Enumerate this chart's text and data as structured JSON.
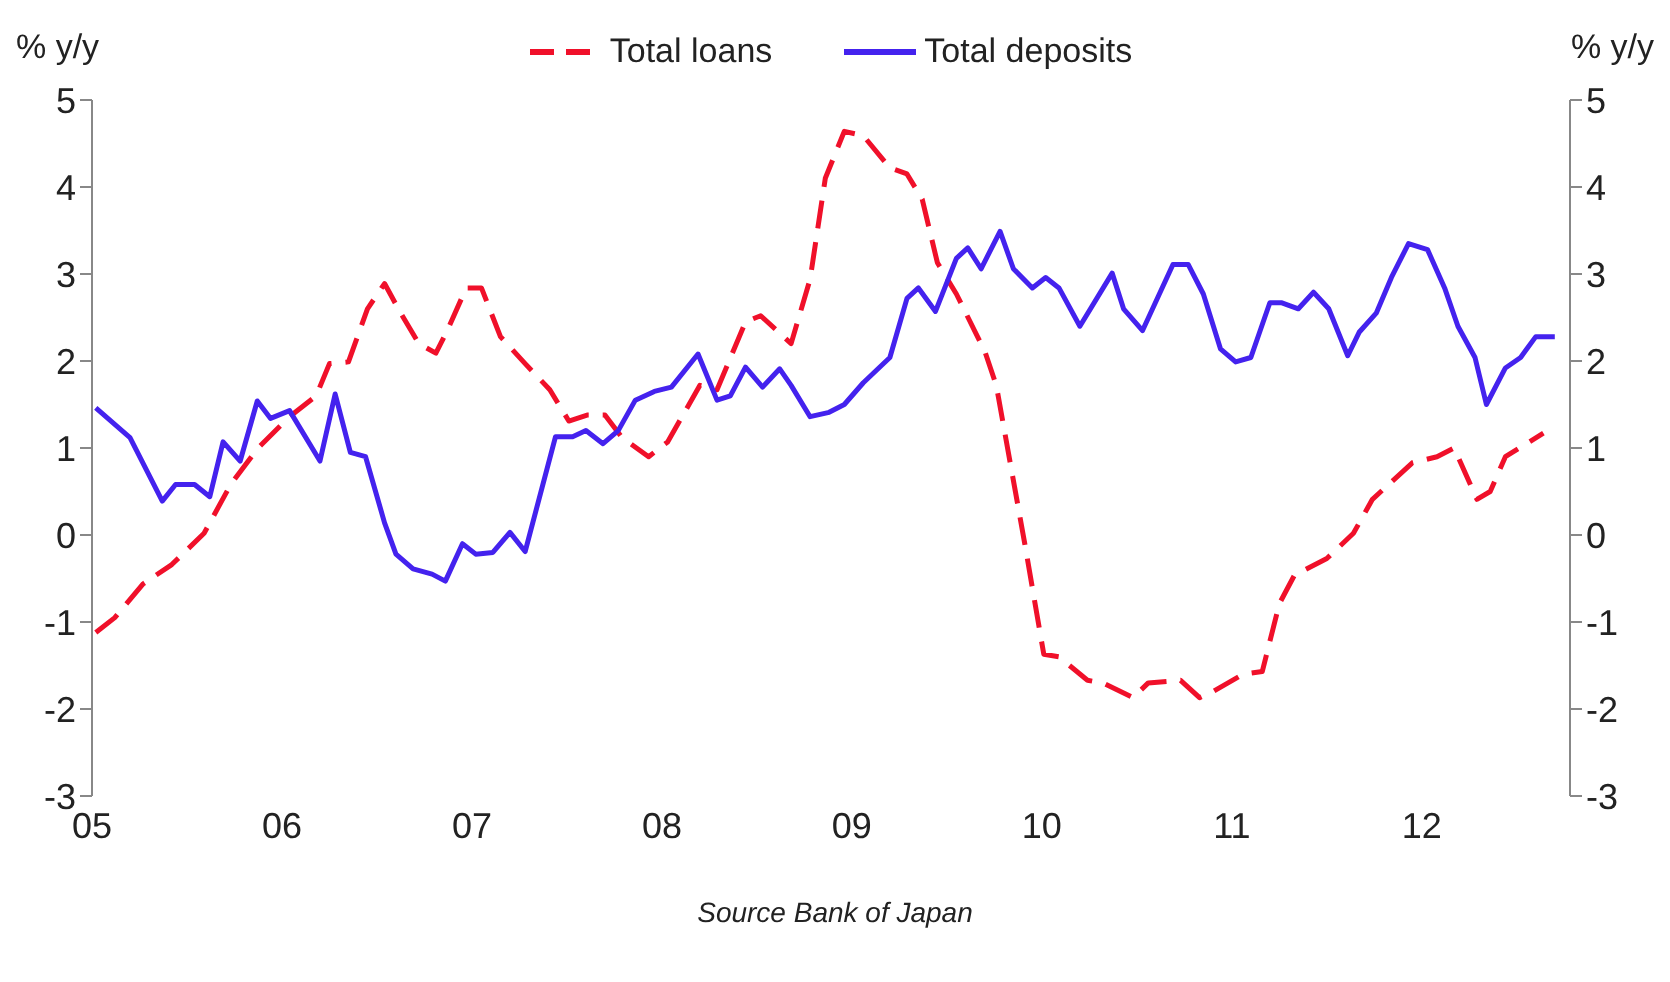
{
  "chart_data": {
    "type": "line",
    "ylabel": "% y/y",
    "y2label": "% y/y",
    "legend": "top",
    "marker": "none",
    "xlim": [
      2005,
      2012.78
    ],
    "xticks": [
      {
        "value": 2005,
        "label": "05"
      },
      {
        "value": 2006,
        "label": "06"
      },
      {
        "value": 2007,
        "label": "07"
      },
      {
        "value": 2008,
        "label": "08"
      },
      {
        "value": 2009,
        "label": "09"
      },
      {
        "value": 2010,
        "label": "10"
      },
      {
        "value": 2011,
        "label": "11"
      },
      {
        "value": 2012,
        "label": "12"
      }
    ],
    "ylim": [
      -3,
      5
    ],
    "yticks": [
      -3,
      -2,
      -1,
      0,
      1,
      2,
      3,
      4,
      5
    ],
    "y2lim": [
      -3,
      5
    ],
    "y2ticks": [
      -3,
      -2,
      -1,
      0,
      1,
      2,
      3,
      4,
      5
    ],
    "series": [
      {
        "name": "Total loans",
        "color": "#f0102a",
        "line_style": "dashed",
        "x": [
          2005.02,
          2005.12,
          2005.27,
          2005.42,
          2005.59,
          2005.73,
          2005.87,
          2006.04,
          2006.18,
          2006.25,
          2006.35,
          2006.45,
          2006.54,
          2006.62,
          2006.72,
          2006.81,
          2006.87,
          2006.97,
          2007.05,
          2007.15,
          2007.28,
          2007.41,
          2007.51,
          2007.61,
          2007.7,
          2007.79,
          2007.93,
          2008.03,
          2008.2,
          2008.29,
          2008.44,
          2008.52,
          2008.68,
          2008.78,
          2008.86,
          2008.96,
          2009.06,
          2009.2,
          2009.29,
          2009.37,
          2009.45,
          2009.55,
          2009.7,
          2009.76,
          2009.91,
          2010.01,
          2010.09,
          2010.24,
          2010.32,
          2010.48,
          2010.56,
          2010.73,
          2010.83,
          2010.9,
          2011.06,
          2011.16,
          2011.25,
          2011.33,
          2011.5,
          2011.64,
          2011.74,
          2011.95,
          2012.08,
          2012.17,
          2012.29,
          2012.36,
          2012.44,
          2012.64
        ],
        "values": [
          -1.12,
          -0.95,
          -0.56,
          -0.34,
          0.02,
          0.58,
          0.99,
          1.36,
          1.6,
          1.97,
          1.99,
          2.6,
          2.89,
          2.57,
          2.2,
          2.09,
          2.35,
          2.84,
          2.84,
          2.28,
          1.97,
          1.67,
          1.31,
          1.38,
          1.38,
          1.12,
          0.9,
          1.07,
          1.72,
          1.67,
          2.45,
          2.52,
          2.2,
          2.94,
          4.1,
          4.64,
          4.59,
          4.22,
          4.15,
          3.86,
          3.13,
          2.77,
          2.11,
          1.72,
          -0.1,
          -1.37,
          -1.4,
          -1.67,
          -1.7,
          -1.87,
          -1.7,
          -1.67,
          -1.87,
          -1.8,
          -1.6,
          -1.57,
          -0.79,
          -0.46,
          -0.27,
          0.02,
          0.41,
          0.83,
          0.9,
          1.0,
          0.41,
          0.5,
          0.9,
          1.17
        ]
      },
      {
        "name": "Total deposits",
        "color": "#4422ee",
        "line_style": "solid",
        "x": [
          2005.02,
          2005.2,
          2005.37,
          2005.44,
          2005.54,
          2005.62,
          2005.69,
          2005.78,
          2005.87,
          2005.94,
          2006.04,
          2006.2,
          2006.28,
          2006.36,
          2006.44,
          2006.54,
          2006.6,
          2006.69,
          2006.79,
          2006.86,
          2006.95,
          2007.02,
          2007.11,
          2007.2,
          2007.28,
          2007.44,
          2007.53,
          2007.6,
          2007.69,
          2007.77,
          2007.86,
          2007.96,
          2008.05,
          2008.19,
          2008.29,
          2008.36,
          2008.44,
          2008.53,
          2008.62,
          2008.68,
          2008.78,
          2008.88,
          2008.96,
          2009.06,
          2009.2,
          2009.29,
          2009.35,
          2009.44,
          2009.55,
          2009.61,
          2009.68,
          2009.78,
          2009.85,
          2009.95,
          2010.02,
          2010.09,
          2010.2,
          2010.37,
          2010.43,
          2010.53,
          2010.69,
          2010.77,
          2010.85,
          2010.94,
          2011.02,
          2011.1,
          2011.2,
          2011.26,
          2011.35,
          2011.43,
          2011.51,
          2011.61,
          2011.67,
          2011.76,
          2011.84,
          2011.93,
          2012.03,
          2012.12,
          2012.19,
          2012.28,
          2012.34,
          2012.44,
          2012.52,
          2012.6,
          2012.7
        ],
        "values": [
          1.46,
          1.12,
          0.39,
          0.58,
          0.58,
          0.44,
          1.07,
          0.85,
          1.54,
          1.34,
          1.43,
          0.85,
          1.62,
          0.95,
          0.9,
          0.14,
          -0.22,
          -0.39,
          -0.45,
          -0.53,
          -0.1,
          -0.22,
          -0.2,
          0.03,
          -0.19,
          1.13,
          1.13,
          1.2,
          1.05,
          1.2,
          1.55,
          1.65,
          1.7,
          2.08,
          1.55,
          1.6,
          1.93,
          1.7,
          1.91,
          1.72,
          1.36,
          1.41,
          1.5,
          1.75,
          2.04,
          2.72,
          2.84,
          2.57,
          3.18,
          3.3,
          3.06,
          3.49,
          3.06,
          2.84,
          2.96,
          2.84,
          2.4,
          3.01,
          2.6,
          2.35,
          3.11,
          3.11,
          2.77,
          2.14,
          1.99,
          2.04,
          2.67,
          2.67,
          2.6,
          2.79,
          2.6,
          2.06,
          2.33,
          2.55,
          2.96,
          3.35,
          3.28,
          2.84,
          2.4,
          2.04,
          1.5,
          1.92,
          2.04,
          2.28,
          2.28
        ]
      }
    ],
    "annotations": [
      "Source  Bank of Japan"
    ]
  }
}
